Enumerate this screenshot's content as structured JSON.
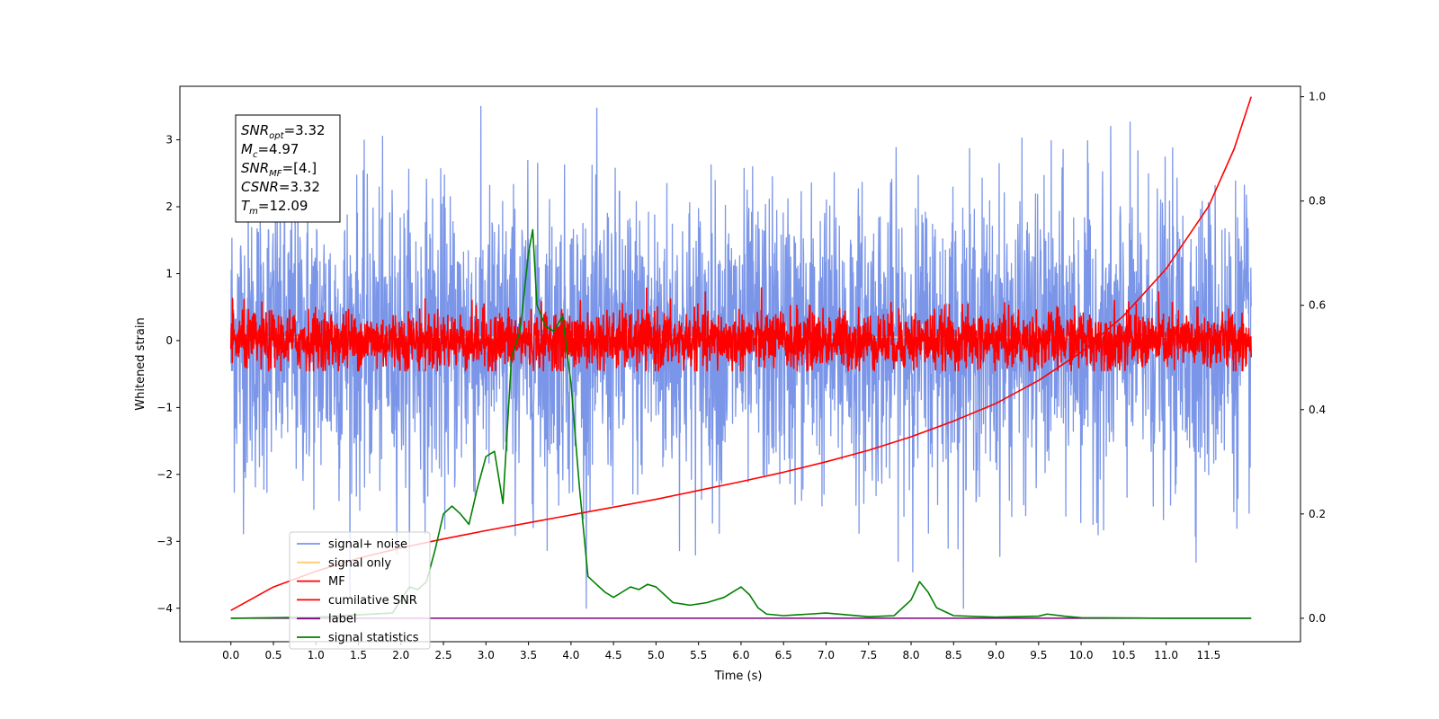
{
  "chart_data": {
    "type": "line",
    "xlabel": "Time (s)",
    "ylabel": "Whitened strain",
    "x_range": [
      0,
      12
    ],
    "xlim": [
      -0.6,
      12.58
    ],
    "ylim": [
      -4.5,
      3.8
    ],
    "y2lim": [
      -0.045,
      1.02
    ],
    "x_ticks": [
      "0.0",
      "0.5",
      "1.0",
      "1.5",
      "2.0",
      "2.5",
      "3.0",
      "3.5",
      "4.0",
      "4.5",
      "5.0",
      "5.5",
      "6.0",
      "6.5",
      "7.0",
      "7.5",
      "8.0",
      "8.5",
      "9.0",
      "9.5",
      "10.0",
      "10.5",
      "11.0",
      "11.5"
    ],
    "y_ticks": [
      "3",
      "2",
      "1",
      "0",
      "−1",
      "−2",
      "−3",
      "−4"
    ],
    "y2_ticks": [
      "1.0",
      "0.8",
      "0.6",
      "0.4",
      "0.2",
      "0.0"
    ],
    "annotation": {
      "lines": [
        {
          "sym": "SNR",
          "sub": "opt",
          "rest": "=3.32"
        },
        {
          "sym": "M",
          "sub": "c",
          "rest": "=4.97"
        },
        {
          "sym": "SNR",
          "sub": "MF",
          "rest": "=[4.]"
        },
        {
          "sym": "CSNR",
          "sub": "",
          "rest": "=3.32"
        },
        {
          "sym": "T",
          "sub": "m",
          "rest": "=12.09"
        }
      ]
    },
    "legend": {
      "position": "lower-left",
      "entries": [
        {
          "label": "signal+ noise",
          "color": "#7b96e8"
        },
        {
          "label": "signal only",
          "color": "#ffcc77"
        },
        {
          "label": "MF",
          "color": "#ff0000"
        },
        {
          "label": "cumilative SNR",
          "color": "#ff0000"
        },
        {
          "label": "label",
          "color": "#800080"
        },
        {
          "label": "signal statistics",
          "color": "#008000"
        }
      ]
    },
    "series": [
      {
        "name": "signal+ noise",
        "color": "#7b96e8",
        "axis": "left",
        "kind": "noise",
        "std": 1.1,
        "range": [
          -4.0,
          3.5
        ]
      },
      {
        "name": "signal only",
        "color": "#ffcc77",
        "axis": "left",
        "kind": "flat",
        "value": 0.05
      },
      {
        "name": "MF",
        "color": "#ff0000",
        "axis": "left",
        "kind": "noise",
        "std": 0.22,
        "range": [
          -0.45,
          0.9
        ]
      },
      {
        "name": "cumilative SNR",
        "color": "#ff0000",
        "axis": "right",
        "x": [
          0.0,
          0.5,
          1.0,
          1.5,
          2.0,
          2.5,
          3.0,
          3.5,
          4.0,
          4.5,
          5.0,
          5.5,
          6.0,
          6.5,
          7.0,
          7.5,
          8.0,
          8.5,
          9.0,
          9.5,
          10.0,
          10.5,
          11.0,
          11.5,
          11.8,
          12.0
        ],
        "values": [
          0.015,
          0.06,
          0.09,
          0.115,
          0.135,
          0.152,
          0.168,
          0.183,
          0.198,
          0.213,
          0.228,
          0.245,
          0.262,
          0.28,
          0.3,
          0.322,
          0.348,
          0.378,
          0.412,
          0.456,
          0.51,
          0.58,
          0.67,
          0.79,
          0.9,
          1.0
        ]
      },
      {
        "name": "label",
        "color": "#800080",
        "axis": "right",
        "kind": "flat",
        "value": 0.0
      },
      {
        "name": "signal statistics",
        "color": "#008000",
        "axis": "right",
        "x": [
          0.0,
          1.0,
          1.9,
          2.1,
          2.2,
          2.3,
          2.4,
          2.5,
          2.6,
          2.7,
          2.8,
          2.9,
          3.0,
          3.1,
          3.2,
          3.3,
          3.4,
          3.5,
          3.55,
          3.6,
          3.7,
          3.8,
          3.9,
          4.0,
          4.1,
          4.2,
          4.3,
          4.4,
          4.5,
          4.6,
          4.7,
          4.8,
          4.9,
          5.0,
          5.2,
          5.4,
          5.6,
          5.8,
          6.0,
          6.1,
          6.2,
          6.3,
          6.5,
          6.8,
          7.0,
          7.5,
          7.8,
          8.0,
          8.1,
          8.2,
          8.3,
          8.5,
          9.0,
          9.5,
          9.6,
          9.8,
          10.0,
          11.0,
          12.0
        ],
        "values": [
          0.0,
          0.002,
          0.01,
          0.06,
          0.055,
          0.07,
          0.13,
          0.2,
          0.215,
          0.2,
          0.18,
          0.25,
          0.31,
          0.32,
          0.22,
          0.5,
          0.55,
          0.7,
          0.745,
          0.6,
          0.56,
          0.55,
          0.58,
          0.45,
          0.25,
          0.08,
          0.065,
          0.05,
          0.04,
          0.05,
          0.06,
          0.055,
          0.065,
          0.06,
          0.03,
          0.025,
          0.03,
          0.04,
          0.06,
          0.045,
          0.02,
          0.008,
          0.005,
          0.008,
          0.01,
          0.003,
          0.005,
          0.035,
          0.07,
          0.05,
          0.02,
          0.005,
          0.002,
          0.004,
          0.008,
          0.004,
          0.001,
          0.0,
          0.0
        ]
      }
    ]
  }
}
